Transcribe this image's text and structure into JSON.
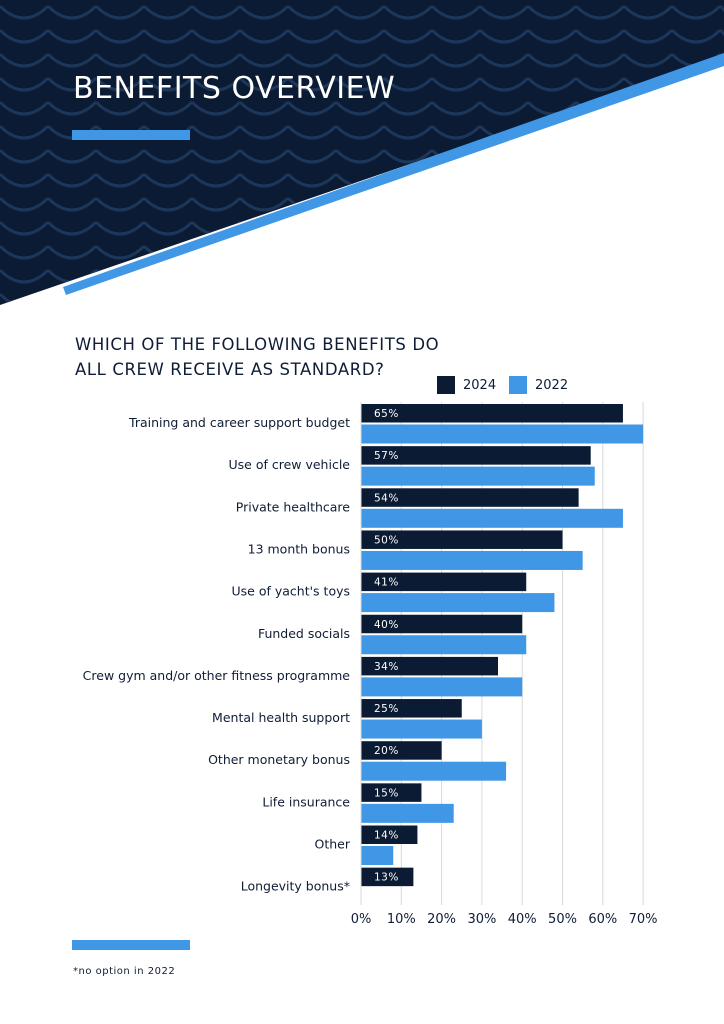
{
  "page": {
    "title": "BENEFITS OVERVIEW",
    "footnote": "*no option in 2022"
  },
  "colors": {
    "navy": "#0b1b33",
    "blue": "#3f97e6",
    "text": "#0f1d36",
    "grid": "#d8d8d8"
  },
  "chart_data": {
    "type": "bar",
    "orientation": "horizontal",
    "title": "WHICH OF THE FOLLOWING BENEFITS DO ALL CREW RECEIVE AS STANDARD?",
    "title_lines": [
      "WHICH OF THE FOLLOWING BENEFITS DO",
      "ALL CREW RECEIVE AS STANDARD?"
    ],
    "categories": [
      "Training and career support budget",
      "Use of crew vehicle",
      "Private healthcare",
      "13 month bonus",
      "Use of yacht's toys",
      "Funded socials",
      "Crew gym and/or other fitness programme",
      "Mental health support",
      "Other monetary bonus",
      "Life insurance",
      "Other",
      "Longevity bonus*"
    ],
    "series": [
      {
        "name": "2024",
        "color": "#0b1b33",
        "values": [
          65,
          57,
          54,
          50,
          41,
          40,
          34,
          25,
          20,
          15,
          14,
          13
        ],
        "labels": [
          "65%",
          "57%",
          "54%",
          "50%",
          "41%",
          "40%",
          "34%",
          "25%",
          "20%",
          "15%",
          "14%",
          "13%"
        ]
      },
      {
        "name": "2022",
        "color": "#3f97e6",
        "values": [
          70,
          58,
          65,
          55,
          48,
          41,
          40,
          30,
          36,
          23,
          8,
          null
        ]
      }
    ],
    "x_ticks": [
      "0%",
      "10%",
      "20%",
      "30%",
      "40%",
      "50%",
      "60%",
      "70%"
    ],
    "xlim": [
      0,
      70
    ],
    "grid": true,
    "legend_position": "top-right"
  }
}
